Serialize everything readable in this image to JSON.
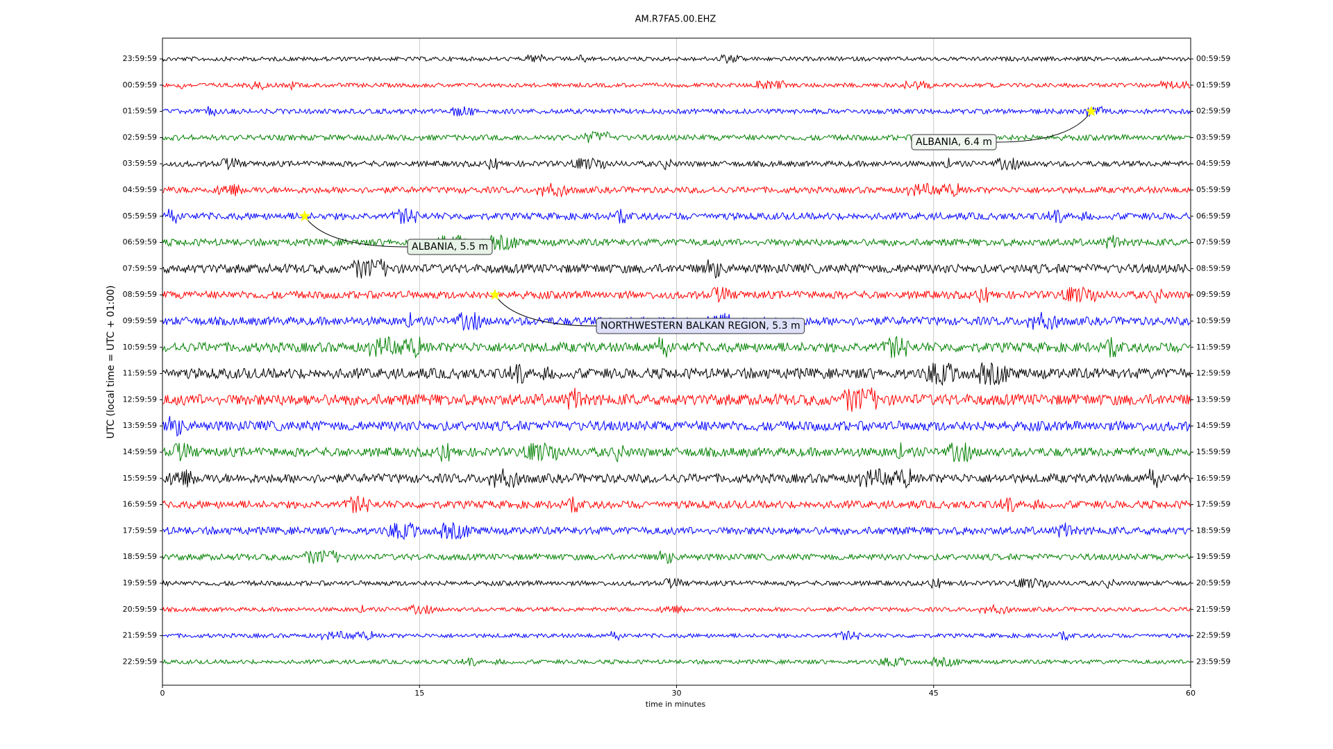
{
  "chart_data": {
    "type": "helicorder",
    "title": "AM.R7FA5.00.EHZ",
    "xlabel": "time in minutes",
    "ylabel": "UTC (local time = UTC + 01:00)",
    "xlim": [
      0,
      60
    ],
    "xticks": [
      0,
      15,
      30,
      45,
      60
    ],
    "grid": true,
    "colors": [
      "black",
      "red",
      "blue",
      "green"
    ],
    "left_labels": [
      "23:59:59",
      "00:59:59",
      "01:59:59",
      "02:59:59",
      "03:59:59",
      "04:59:59",
      "05:59:59",
      "06:59:59",
      "07:59:59",
      "08:59:59",
      "09:59:59",
      "10:59:59",
      "11:59:59",
      "12:59:59",
      "13:59:59",
      "14:59:59",
      "15:59:59",
      "16:59:59",
      "17:59:59",
      "18:59:59",
      "19:59:59",
      "20:59:59",
      "21:59:59",
      "22:59:59"
    ],
    "right_labels": [
      "00:59:59",
      "01:59:59",
      "02:59:59",
      "03:59:59",
      "04:59:59",
      "05:59:59",
      "06:59:59",
      "07:59:59",
      "08:59:59",
      "09:59:59",
      "10:59:59",
      "11:59:59",
      "12:59:59",
      "13:59:59",
      "14:59:59",
      "15:59:59",
      "16:59:59",
      "17:59:59",
      "18:59:59",
      "19:59:59",
      "20:59:59",
      "21:59:59",
      "22:59:59",
      "23:59:59"
    ],
    "events": [
      {
        "label": "ALBANIA, 6.4 m",
        "minute": 54.2,
        "row": 2
      },
      {
        "label": "ALBANIA, 5.5 m",
        "minute": 8.3,
        "row": 6
      },
      {
        "label": "NORTHWESTERN BALKAN REGION, 5.3 m",
        "minute": 19.4,
        "row": 9
      }
    ]
  }
}
